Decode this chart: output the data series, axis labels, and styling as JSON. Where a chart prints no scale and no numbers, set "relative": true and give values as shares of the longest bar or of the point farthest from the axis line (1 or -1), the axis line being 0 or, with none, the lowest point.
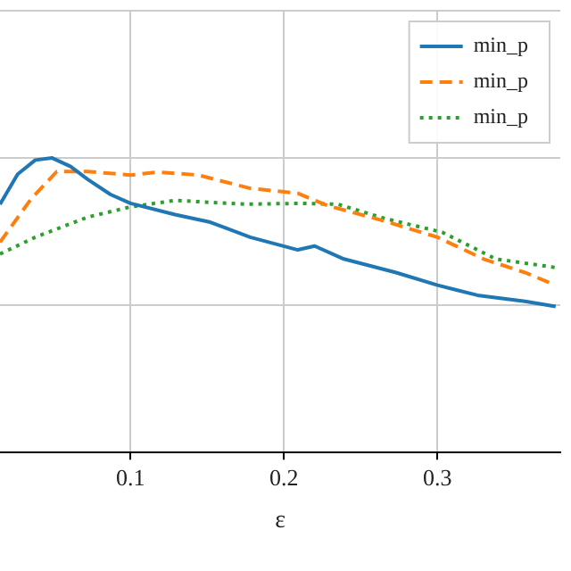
{
  "chart_data": {
    "type": "line",
    "xlabel": "ε",
    "relative": true,
    "xlim": [
      0.015,
      0.38
    ],
    "xticks": [
      0.1,
      0.2,
      0.3
    ],
    "grid": true,
    "legend": "top right",
    "marker": "none",
    "series": [
      {
        "name": "min_p",
        "color": "#1f77b4",
        "line_style": "solid",
        "x": [
          0.015,
          0.0265,
          0.038,
          0.049,
          0.061,
          0.072,
          0.087,
          0.1,
          0.129,
          0.152,
          0.178,
          0.209,
          0.22,
          0.239,
          0.273,
          0.3,
          0.326,
          0.357,
          0.377
        ],
        "values": [
          0.843,
          0.945,
          0.993,
          1.0,
          0.971,
          0.928,
          0.876,
          0.846,
          0.808,
          0.782,
          0.731,
          0.688,
          0.701,
          0.657,
          0.611,
          0.568,
          0.534,
          0.513,
          0.496
        ]
      },
      {
        "name": "min_p",
        "color": "#ff7f0e",
        "line_style": "dashed",
        "x": [
          0.015,
          0.035,
          0.052,
          0.072,
          0.1,
          0.118,
          0.144,
          0.178,
          0.209,
          0.228,
          0.262,
          0.3,
          0.33,
          0.357,
          0.377
        ],
        "values": [
          0.714,
          0.859,
          0.954,
          0.954,
          0.942,
          0.952,
          0.942,
          0.897,
          0.88,
          0.839,
          0.791,
          0.731,
          0.657,
          0.611,
          0.568
        ]
      },
      {
        "name": "min_p",
        "color": "#2ca02c",
        "line_style": "dotted",
        "x": [
          0.015,
          0.038,
          0.072,
          0.1,
          0.129,
          0.175,
          0.212,
          0.235,
          0.266,
          0.303,
          0.338,
          0.377
        ],
        "values": [
          0.674,
          0.731,
          0.799,
          0.834,
          0.856,
          0.843,
          0.846,
          0.843,
          0.794,
          0.748,
          0.657,
          0.628
        ]
      }
    ]
  }
}
